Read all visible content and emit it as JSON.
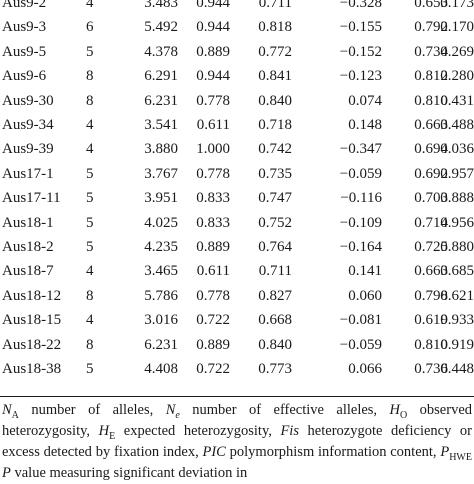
{
  "table": {
    "rows": [
      [
        "Aus9-2",
        "4",
        "3.483",
        "0.944",
        "0.711",
        "−0.328",
        "0.653",
        "0.173"
      ],
      [
        "Aus9-3",
        "6",
        "5.492",
        "0.944",
        "0.818",
        "−0.155",
        "0.792",
        "0.170"
      ],
      [
        "Aus9-5",
        "5",
        "4.378",
        "0.889",
        "0.772",
        "−0.152",
        "0.734",
        "0.269"
      ],
      [
        "Aus9-6",
        "8",
        "6.291",
        "0.944",
        "0.841",
        "−0.123",
        "0.812",
        "0.280"
      ],
      [
        "Aus9-30",
        "8",
        "6.231",
        "0.778",
        "0.840",
        "0.074",
        "0.810",
        "0.431"
      ],
      [
        "Aus9-34",
        "4",
        "3.541",
        "0.611",
        "0.718",
        "0.148",
        "0.663",
        "0.488"
      ],
      [
        "Aus9-39",
        "4",
        "3.880",
        "1.000",
        "0.742",
        "−0.347",
        "0.694",
        "0.036"
      ],
      [
        "Aus17-1",
        "5",
        "3.767",
        "0.778",
        "0.735",
        "−0.059",
        "0.692",
        "0.957"
      ],
      [
        "Aus17-11",
        "5",
        "3.951",
        "0.833",
        "0.747",
        "−0.116",
        "0.703",
        "0.888"
      ],
      [
        "Aus18-1",
        "5",
        "4.025",
        "0.833",
        "0.752",
        "−0.109",
        "0.714",
        "0.956"
      ],
      [
        "Aus18-2",
        "5",
        "4.235",
        "0.889",
        "0.764",
        "−0.164",
        "0.725",
        "0.880"
      ],
      [
        "Aus18-7",
        "4",
        "3.465",
        "0.611",
        "0.711",
        "0.141",
        "0.663",
        "0.685"
      ],
      [
        "Aus18-12",
        "8",
        "5.786",
        "0.778",
        "0.827",
        "0.060",
        "0.798",
        "0.621"
      ],
      [
        "Aus18-15",
        "4",
        "3.016",
        "0.722",
        "0.668",
        "−0.081",
        "0.619",
        "0.933"
      ],
      [
        "Aus18-22",
        "8",
        "6.231",
        "0.889",
        "0.840",
        "−0.059",
        "0.810",
        "0.919"
      ],
      [
        "Aus18-38",
        "5",
        "4.408",
        "0.722",
        "0.773",
        "0.066",
        "0.736",
        "0.448"
      ]
    ]
  },
  "footnote": {
    "t1": "A",
    "t2": " number of alleles, ",
    "t3": "e",
    "t4": " number of effective alleles, ",
    "t5": "O",
    "t6": " observed heterozygosity, ",
    "t7": "E",
    "t8": " expected heterozygosity, ",
    "t9": "Fis",
    "t10": " heterozygote deficiency or excess detected by fixation index, ",
    "t11": "PIC",
    "t12": " polymorphism information content, ",
    "t13": "P",
    "t14": "HWE",
    "t15": " ",
    "t16": "P",
    "t17": " value measuring significant deviation in"
  }
}
